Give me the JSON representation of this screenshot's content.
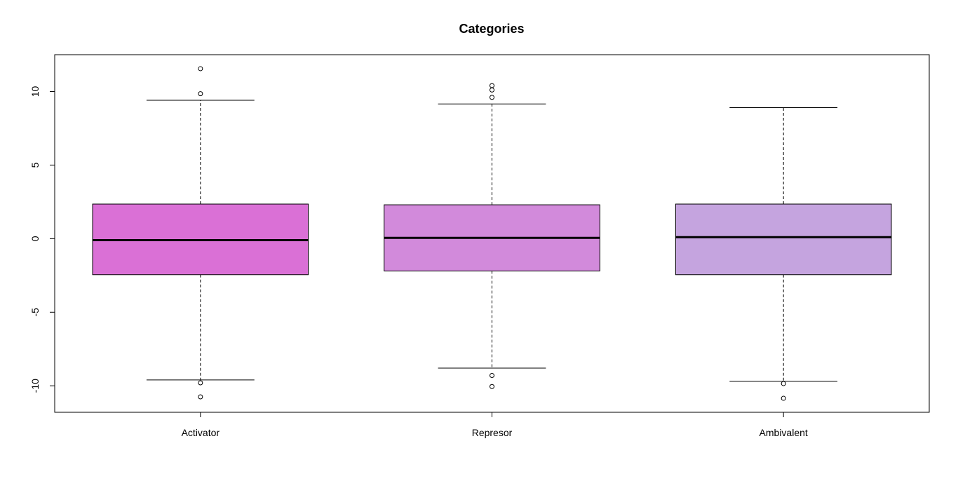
{
  "chart_data": {
    "type": "boxplot",
    "title": "Categories",
    "xlabel": "",
    "ylabel": "",
    "ylim": [
      -11.8,
      12.5
    ],
    "yticks": [
      -10,
      -5,
      0,
      5,
      10
    ],
    "grid": false,
    "categories": [
      "Activator",
      "Represor",
      "Ambivalent"
    ],
    "boxes": [
      {
        "category": "Activator",
        "whisker_low": -9.6,
        "q1": -2.45,
        "median": -0.1,
        "q3": 2.35,
        "whisker_high": 9.4,
        "outliers": [
          11.55,
          9.85,
          -9.8,
          -10.75
        ],
        "color": "#da70d6"
      },
      {
        "category": "Represor",
        "whisker_low": -8.8,
        "q1": -2.2,
        "median": 0.05,
        "q3": 2.3,
        "whisker_high": 9.15,
        "outliers": [
          10.4,
          10.1,
          9.6,
          -9.3,
          -10.05
        ],
        "color": "#d28adb"
      },
      {
        "category": "Ambivalent",
        "whisker_low": -9.7,
        "q1": -2.45,
        "median": 0.1,
        "q3": 2.35,
        "whisker_high": 8.9,
        "outliers": [
          -9.85,
          -10.85
        ],
        "color": "#c5a4df"
      }
    ]
  }
}
